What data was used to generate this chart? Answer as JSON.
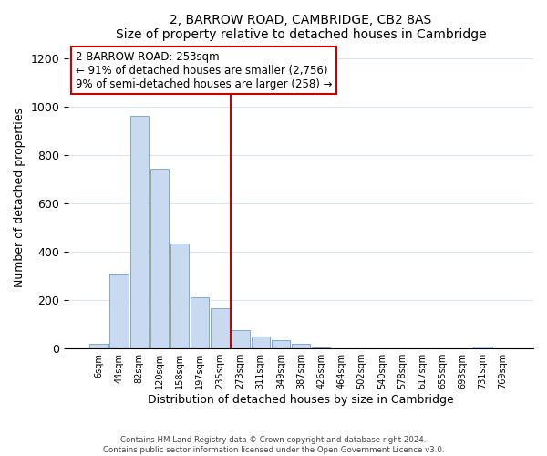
{
  "title": "2, BARROW ROAD, CAMBRIDGE, CB2 8AS",
  "subtitle": "Size of property relative to detached houses in Cambridge",
  "xlabel": "Distribution of detached houses by size in Cambridge",
  "ylabel": "Number of detached properties",
  "bar_labels": [
    "6sqm",
    "44sqm",
    "82sqm",
    "120sqm",
    "158sqm",
    "197sqm",
    "235sqm",
    "273sqm",
    "311sqm",
    "349sqm",
    "387sqm",
    "426sqm",
    "464sqm",
    "502sqm",
    "540sqm",
    "578sqm",
    "617sqm",
    "655sqm",
    "693sqm",
    "731sqm",
    "769sqm"
  ],
  "bar_values": [
    20,
    310,
    960,
    745,
    435,
    210,
    165,
    75,
    48,
    33,
    18,
    5,
    0,
    0,
    0,
    0,
    0,
    0,
    0,
    10,
    0
  ],
  "bar_color": "#c8d9f0",
  "bar_edge_color": "#7fa8d5",
  "vline_index": 6.5,
  "vline_color": "#cc0000",
  "annotation_line1": "2 BARROW ROAD: 253sqm",
  "annotation_line2": "← 91% of detached houses are smaller (2,756)",
  "annotation_line3": "9% of semi-detached houses are larger (258) →",
  "annotation_box_color": "#ffffff",
  "annotation_box_edge": "#cc0000",
  "ylim": [
    0,
    1250
  ],
  "yticks": [
    0,
    200,
    400,
    600,
    800,
    1000,
    1200
  ],
  "footnote_line1": "Contains HM Land Registry data © Crown copyright and database right 2024.",
  "footnote_line2": "Contains public sector information licensed under the Open Government Licence v3.0.",
  "background_color": "#ffffff",
  "grid_color": "#d8e4f0"
}
